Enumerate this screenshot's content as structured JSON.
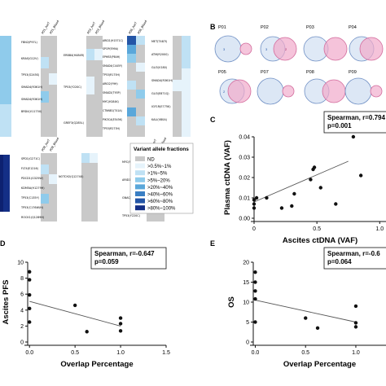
{
  "panel_b": {
    "label": "B",
    "groups": [
      {
        "id": "P01",
        "a": "3",
        "both": "",
        "b": ""
      },
      {
        "id": "P02",
        "a": "3",
        "both": "",
        "b": "2"
      },
      {
        "id": "P03",
        "a": "",
        "both": "",
        "b": ""
      },
      {
        "id": "P04",
        "a": "",
        "both": "",
        "b": ""
      },
      {
        "id": "P05",
        "a": "2",
        "both": "",
        "b": ""
      },
      {
        "id": "P07",
        "a": "",
        "both": "",
        "b": ""
      },
      {
        "id": "P08",
        "a": "",
        "both": "",
        "b": ""
      },
      {
        "id": "P09",
        "a": "",
        "both": "",
        "b": ""
      }
    ]
  },
  "panel_a": {
    "legend": {
      "title": "Variant allele fractions",
      "entries": [
        {
          "label": "ND",
          "color": "#c9c9c9"
        },
        {
          "label": ">0.5%~1%",
          "color": "#e6f3fb"
        },
        {
          "label": ">1%~5%",
          "color": "#bfe1f4"
        },
        {
          "label": ">5%~20%",
          "color": "#8fcbeb"
        },
        {
          "label": ">20%~40%",
          "color": "#5aa7da"
        },
        {
          "label": ">40%~60%",
          "color": "#3a7fc4"
        },
        {
          "label": ">60%~80%",
          "color": "#2455a6"
        },
        {
          "label": ">80%~100%",
          "color": "#142f86"
        }
      ]
    },
    "column_headers": [
      "P01_Ascf",
      "P01_Blood",
      "P03_Ascf",
      "P03_Blood",
      "P06_Ascf",
      "P06_Blood",
      "P08_Ascf",
      "P08_Blood",
      "P09_Ascf",
      "P09_Blood"
    ],
    "gene_labels_1": [
      "FBN2(P97L)",
      "KRAS(G12V)",
      "TP53(G245S)",
      "SMAD4(R361H)",
      "SMAD4(R361H)",
      "BRD4(V1175X)"
    ],
    "gene_labels_2": [
      "ERBB4(H484R)",
      "TP53(Y220C)",
      "GREF3(Q285L)"
    ],
    "gene_labels_3": [
      "ARID1(H1571C)",
      "SPOP(E99A)",
      "EPHB3(P84H)",
      "SMAD4(C445Y)",
      "TP53(R175H)",
      "ARID2(Y9H)",
      "SMAD2(T93P)",
      "MYC(H284K)",
      "CTNNB1(T41A)",
      "PIK3CA(E545K)",
      "TP53(R273H)"
    ],
    "gene_labels_4": [
      "MET(T487I)",
      "ATM(R2000)",
      "GLI3(V180)",
      "SMAD4(R361H)",
      "GLI3(E871Q)",
      "IGF1R(E775K)",
      "KALI(V80A)"
    ],
    "gene_labels_5": [
      "SPD1(G271C)",
      "FLT4(E1216)",
      "PDCD1(G325W)",
      "KDM5A(H1279H)",
      "TP53(C135Y)",
      "TP53(C176W/H)",
      "ROCK1(Q1289H)"
    ],
    "gene_labels_6": [
      "NOTCH2(Q1274X)"
    ],
    "gene_labels_7": [
      "MYC(N26K)",
      "ARID1B(S706Y)",
      "GNAQ(A182V)",
      "TP53(Y220C)"
    ]
  },
  "chart_data": [
    {
      "panel": "C",
      "type": "scatter",
      "xlabel": "Ascites ctDNA (VAF)",
      "ylabel": "Plasma ctDNA (VAF)",
      "annotation": [
        "Spearman, r=0.794",
        "p=0.001"
      ],
      "xlim": [
        0,
        1.05
      ],
      "ylim": [
        0,
        0.04
      ],
      "xticks": [
        "0",
        "0.5",
        "1.0"
      ],
      "yticks": [
        "0.00",
        "0.01",
        "0.02",
        "0.03",
        "0.04"
      ],
      "points": [
        {
          "x": 0.0,
          "y": 0.005
        },
        {
          "x": 0.0,
          "y": 0.007
        },
        {
          "x": 0.0,
          "y": 0.009
        },
        {
          "x": 0.02,
          "y": 0.01
        },
        {
          "x": 0.1,
          "y": 0.01
        },
        {
          "x": 0.22,
          "y": 0.005
        },
        {
          "x": 0.3,
          "y": 0.006
        },
        {
          "x": 0.32,
          "y": 0.012
        },
        {
          "x": 0.45,
          "y": 0.019
        },
        {
          "x": 0.47,
          "y": 0.024
        },
        {
          "x": 0.48,
          "y": 0.025
        },
        {
          "x": 0.53,
          "y": 0.015
        },
        {
          "x": 0.65,
          "y": 0.007
        },
        {
          "x": 0.79,
          "y": 0.04
        },
        {
          "x": 0.85,
          "y": 0.021
        }
      ],
      "trendline": {
        "x": [
          0,
          0.75
        ],
        "y": [
          0.008,
          0.028
        ]
      }
    },
    {
      "panel": "D",
      "type": "scatter",
      "xlabel": "Overlap Percentage",
      "ylabel": "Ascites PFS",
      "annotation": [
        "Spearman, r=-0.647",
        "p=0.059"
      ],
      "xlim": [
        -0.02,
        1.5
      ],
      "ylim": [
        0,
        10
      ],
      "xticks": [
        "0.0",
        "0.5",
        "1.0",
        "1.5"
      ],
      "yticks": [
        "0",
        "2",
        "4",
        "6",
        "8",
        "10"
      ],
      "points": [
        {
          "x": 0.0,
          "y": 8.8
        },
        {
          "x": 0.0,
          "y": 7.8
        },
        {
          "x": 0.0,
          "y": 5.9
        },
        {
          "x": 0.0,
          "y": 4.2
        },
        {
          "x": 0.0,
          "y": 2.5
        },
        {
          "x": 0.5,
          "y": 4.6
        },
        {
          "x": 0.63,
          "y": 1.3
        },
        {
          "x": 1.0,
          "y": 3.0
        },
        {
          "x": 1.0,
          "y": 2.3
        },
        {
          "x": 1.0,
          "y": 1.4
        }
      ],
      "trendline": {
        "x": [
          0,
          1.0
        ],
        "y": [
          5.1,
          2.0
        ]
      }
    },
    {
      "panel": "E",
      "type": "scatter",
      "xlabel": "Overlap Percentage",
      "ylabel": "OS",
      "annotation": [
        "Spearman, r=-0.6",
        "p=0.064"
      ],
      "xlim": [
        -0.02,
        1.3
      ],
      "ylim": [
        0,
        20
      ],
      "xticks": [
        "0.0",
        "0.5",
        "1.0"
      ],
      "yticks": [
        "0",
        "5",
        "10",
        "15",
        "20"
      ],
      "points": [
        {
          "x": 0.0,
          "y": 17.5
        },
        {
          "x": 0.0,
          "y": 15.0
        },
        {
          "x": 0.0,
          "y": 12.8
        },
        {
          "x": 0.0,
          "y": 10.8
        },
        {
          "x": 0.0,
          "y": 5.0
        },
        {
          "x": 0.5,
          "y": 6.0
        },
        {
          "x": 0.62,
          "y": 3.5
        },
        {
          "x": 1.0,
          "y": 9.0
        },
        {
          "x": 1.0,
          "y": 4.8
        },
        {
          "x": 1.0,
          "y": 3.8
        }
      ],
      "trendline": {
        "x": [
          0,
          1.0
        ],
        "y": [
          10.5,
          5.0
        ]
      }
    }
  ]
}
